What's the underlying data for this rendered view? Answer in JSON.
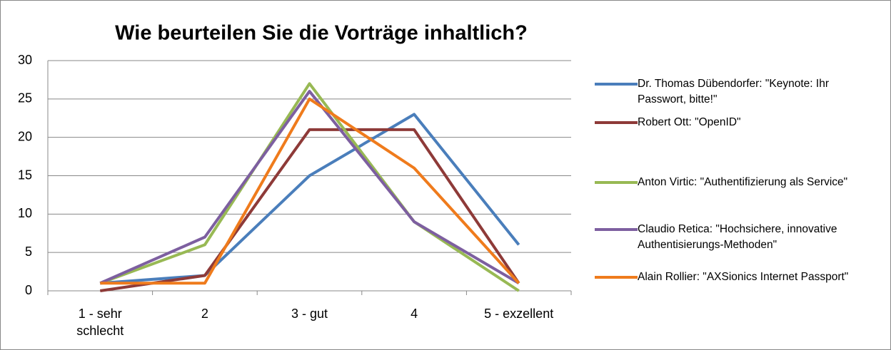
{
  "chart_data": {
    "type": "line",
    "title": "Wie beurteilen Sie die Vorträge inhaltlich?",
    "categories": [
      "1 - sehr schlecht",
      "2",
      "3 - gut",
      "4",
      "5 - exzellent"
    ],
    "series": [
      {
        "name": "Dr. Thomas Dübendorfer: \"Keynote: Ihr Passwort, bitte!\"",
        "color": "#4a7ebb",
        "values": [
          1,
          2,
          15,
          23,
          6
        ]
      },
      {
        "name": "Robert Ott: \"OpenID\"",
        "color": "#8e3a38",
        "values": [
          0,
          2,
          21,
          21,
          1
        ]
      },
      {
        "name": "Anton Virtic: \"Authentifizierung als Service\"",
        "color": "#98b954",
        "values": [
          1,
          6,
          27,
          9,
          0
        ]
      },
      {
        "name": "Claudio Retica: \"Hochsichere, innovative Authentisierungs-Methoden\"",
        "color": "#7d5fa0",
        "values": [
          1,
          7,
          26,
          9,
          1
        ]
      },
      {
        "name": "Alain Rollier: \"AXSionics Internet Passport\"",
        "color": "#ef7b1c",
        "values": [
          1,
          1,
          25,
          16,
          1
        ]
      }
    ],
    "ylim": [
      0,
      30
    ],
    "yticks": [
      0,
      5,
      10,
      15,
      20,
      25,
      30
    ],
    "grid": true,
    "legend": "right"
  }
}
